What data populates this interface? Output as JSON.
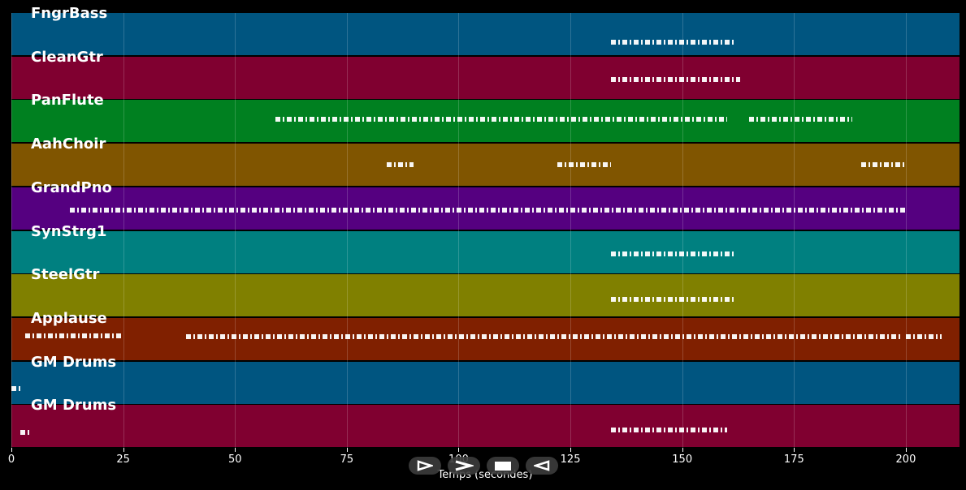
{
  "tracks": [
    {
      "name": "FngrBass",
      "color": "#005580",
      "notes": [
        [
          134,
          162,
          0.7
        ]
      ]
    },
    {
      "name": "CleanGtr",
      "color": "#800030",
      "notes": [
        [
          134,
          163,
          0.55
        ]
      ]
    },
    {
      "name": "PanFlute",
      "color": "#008020",
      "notes": [
        [
          59,
          160,
          0.45
        ],
        [
          165,
          188,
          0.45
        ]
      ]
    },
    {
      "name": "AahChoir",
      "color": "#805500",
      "notes": [
        [
          84,
          90,
          0.5
        ],
        [
          122,
          134,
          0.5
        ],
        [
          190,
          200,
          0.5
        ]
      ]
    },
    {
      "name": "GrandPno",
      "color": "#550080",
      "notes": [
        [
          13,
          200,
          0.55
        ]
      ]
    },
    {
      "name": "SynStrg1",
      "color": "#008080",
      "notes": [
        [
          134,
          162,
          0.55
        ]
      ]
    },
    {
      "name": "SteelGtr",
      "color": "#808000",
      "notes": [
        [
          134,
          162,
          0.6
        ]
      ]
    },
    {
      "name": "Applause",
      "color": "#802000",
      "notes": [
        [
          39,
          199,
          0.45
        ],
        [
          200,
          208,
          0.45
        ],
        [
          3,
          25,
          0.42
        ]
      ]
    },
    {
      "name": "GM Drums",
      "color": "#005580",
      "notes": [
        [
          0,
          2,
          0.65
        ]
      ]
    },
    {
      "name": "GM Drums",
      "color": "#800030",
      "notes": [
        [
          2,
          4,
          0.65
        ],
        [
          134,
          160,
          0.6
        ]
      ]
    }
  ],
  "x_axis": {
    "label": "Temps (secondes)",
    "ticks": [
      "0",
      "25",
      "50",
      "75",
      "100",
      "125",
      "150",
      "175",
      "200"
    ],
    "min": 0,
    "max": 212
  },
  "controls": [
    {
      "name": "play-outline-icon"
    },
    {
      "name": "fast-forward-icon"
    },
    {
      "name": "stop-icon"
    },
    {
      "name": "rewind-icon"
    }
  ]
}
